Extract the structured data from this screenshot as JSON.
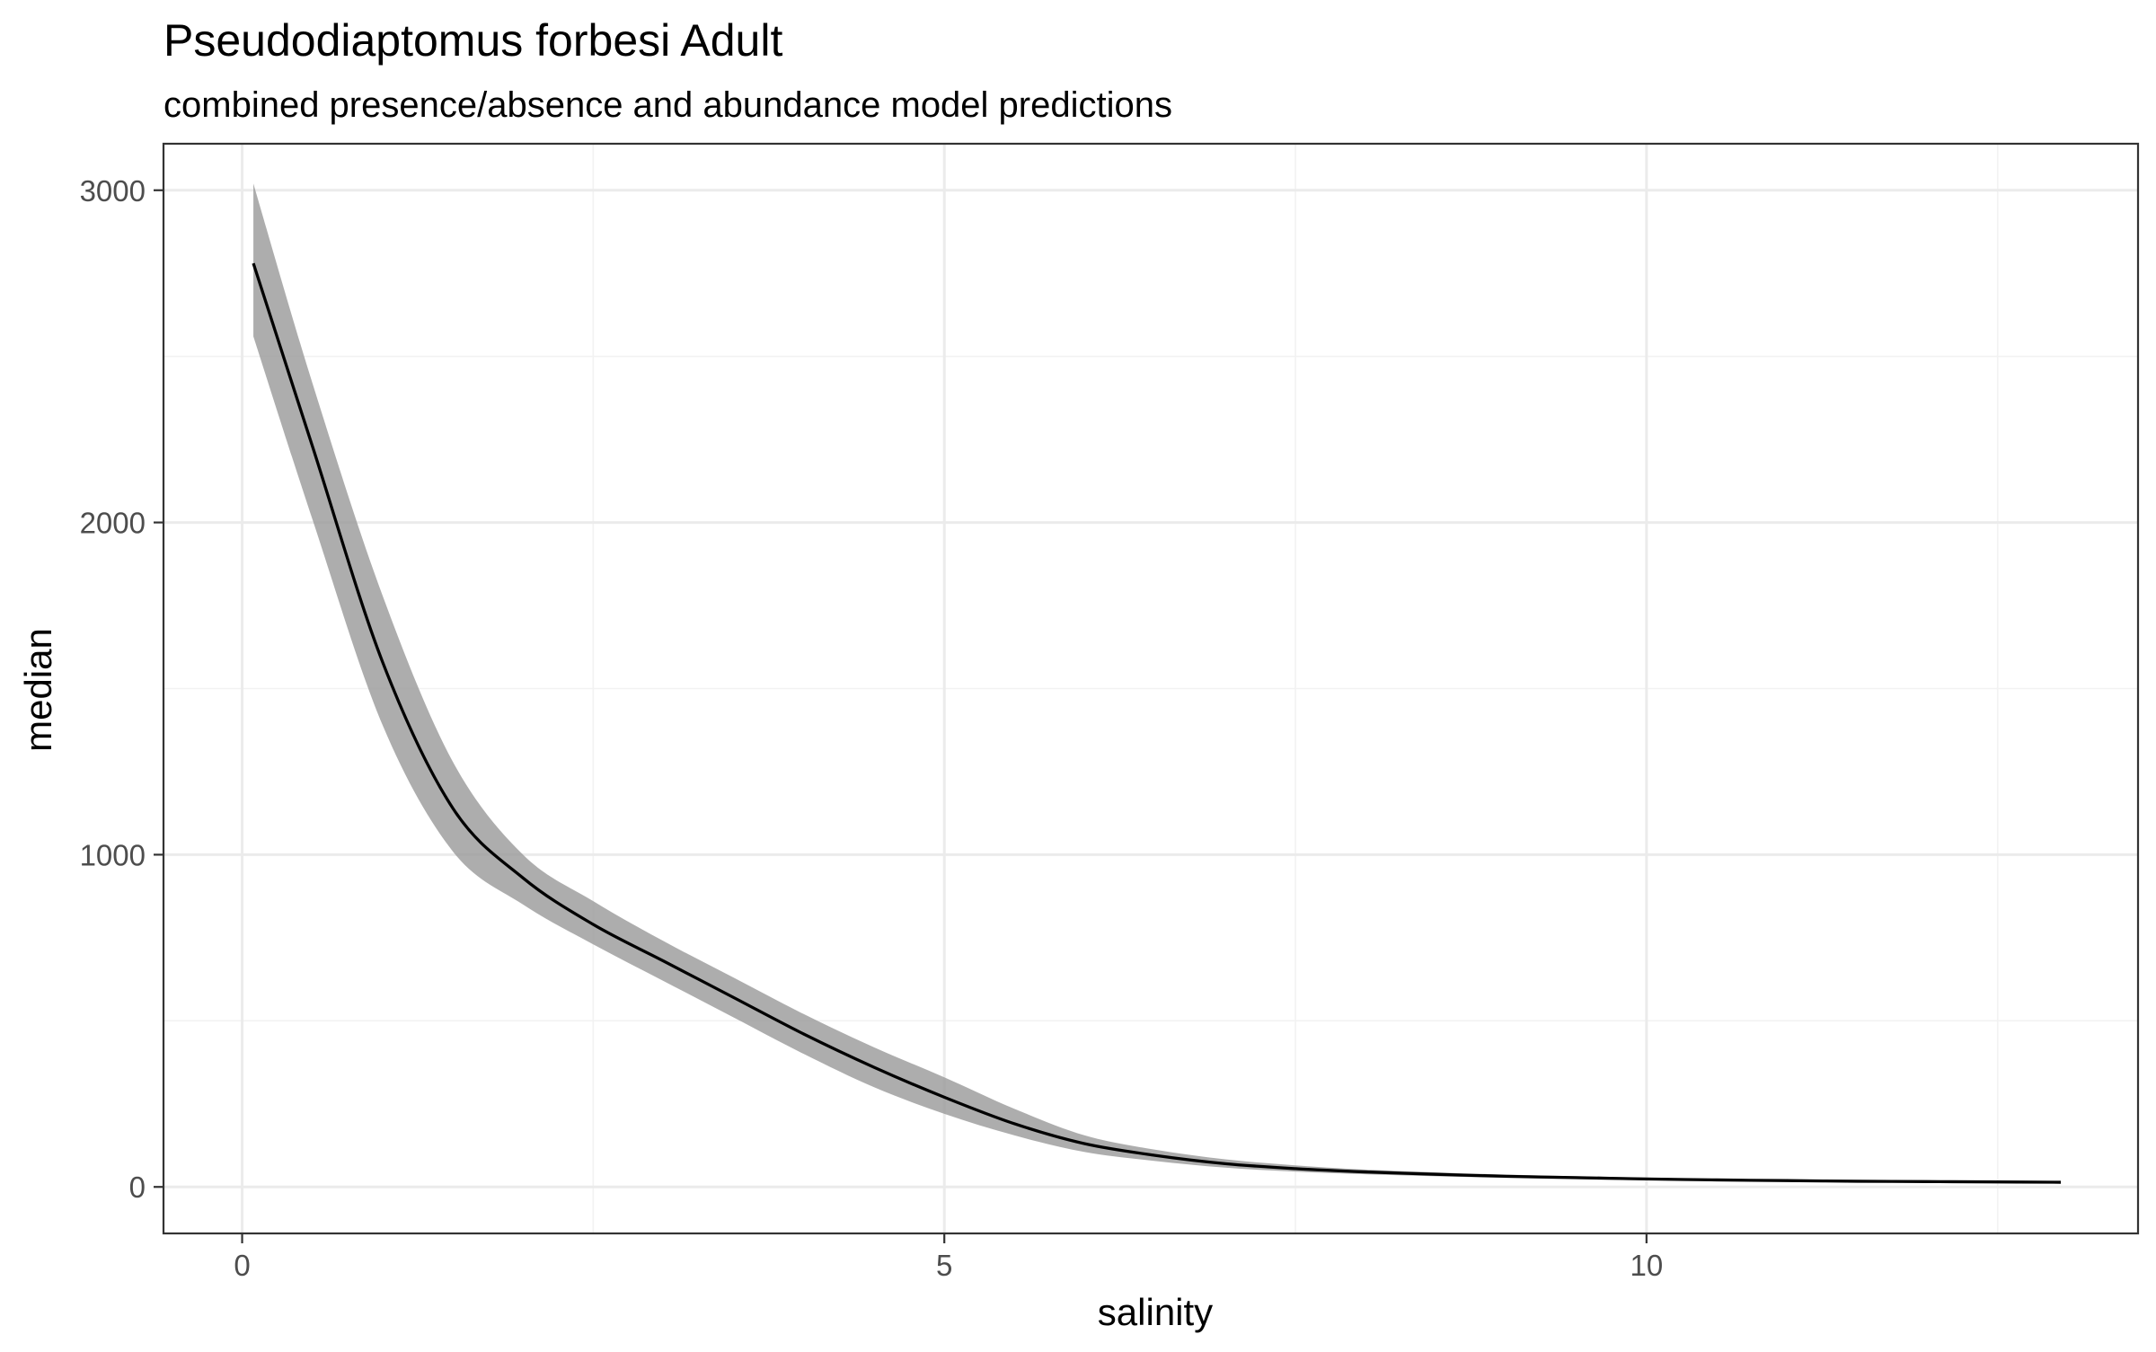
{
  "chart_data": {
    "type": "line",
    "title": "Pseudodiaptomus forbesi Adult",
    "subtitle": "combined presence/absence and abundance model predictions",
    "xlabel": "salinity",
    "ylabel": "median",
    "xlim": [
      -0.56,
      13.5
    ],
    "ylim": [
      -140,
      3140
    ],
    "x_ticks": [
      0,
      5,
      10
    ],
    "x_tick_labels": [
      "0",
      "5",
      "10"
    ],
    "y_ticks": [
      0,
      1000,
      2000,
      3000
    ],
    "y_tick_labels": [
      "0",
      "1000",
      "2000",
      "3000"
    ],
    "x_minor": [
      2.5,
      7.5,
      12.5
    ],
    "y_minor": [
      500,
      1500,
      2500
    ],
    "grid": true,
    "series": [
      {
        "x": [
          0.08,
          0.5,
          1.0,
          1.5,
          2.0,
          2.5,
          3.0,
          3.5,
          4.0,
          4.5,
          5.0,
          5.5,
          6.0,
          6.5,
          7.0,
          7.5,
          8.0,
          8.5,
          9.0,
          9.5,
          10.0,
          10.5,
          11.0,
          11.5,
          12.0,
          12.5,
          12.95
        ],
        "y": [
          2780,
          2230,
          1580,
          1140,
          930,
          790,
          680,
          570,
          460,
          360,
          270,
          190,
          130,
          95,
          70,
          55,
          45,
          38,
          32,
          28,
          24,
          21,
          19,
          17,
          16,
          15,
          14
        ],
        "lower": [
          2560,
          2010,
          1390,
          1010,
          850,
          730,
          620,
          510,
          400,
          300,
          220,
          155,
          105,
          78,
          58,
          46,
          38,
          32,
          27,
          23,
          20,
          18,
          16,
          14,
          13,
          12,
          11
        ],
        "upper": [
          3020,
          2420,
          1780,
          1280,
          1000,
          860,
          740,
          630,
          520,
          420,
          330,
          235,
          155,
          112,
          83,
          65,
          52,
          44,
          37,
          32,
          28,
          24,
          22,
          20,
          18,
          17,
          16
        ]
      }
    ]
  }
}
